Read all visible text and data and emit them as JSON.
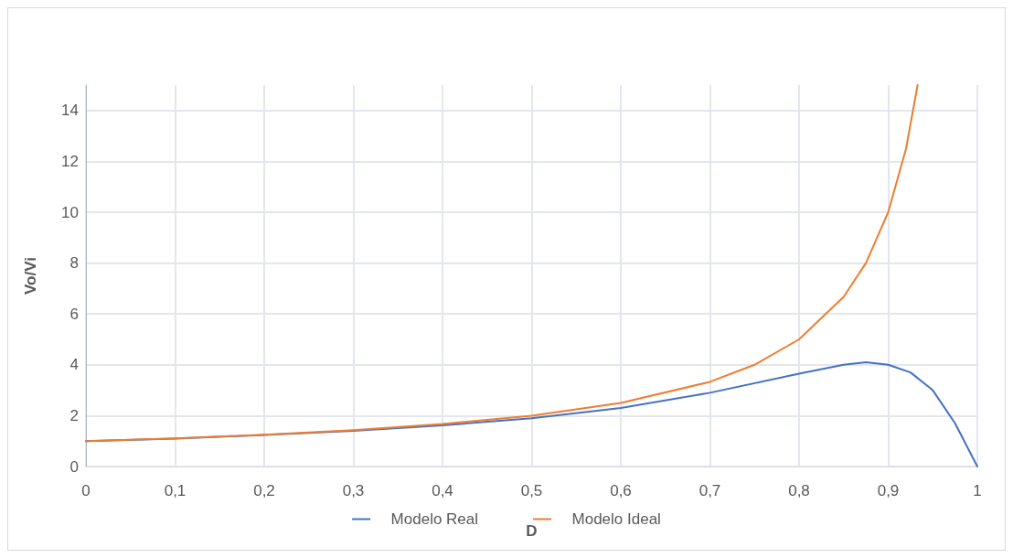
{
  "chart_data": {
    "type": "line",
    "xlabel": "D",
    "ylabel": "Vo/Vi",
    "xlim": [
      0,
      1
    ],
    "xticks": [
      {
        "value": 0,
        "label": "0"
      },
      {
        "value": 0.1,
        "label": "0,1"
      },
      {
        "value": 0.2,
        "label": "0,2"
      },
      {
        "value": 0.3,
        "label": "0,3"
      },
      {
        "value": 0.4,
        "label": "0,4"
      },
      {
        "value": 0.5,
        "label": "0,5"
      },
      {
        "value": 0.6,
        "label": "0,6"
      },
      {
        "value": 0.7,
        "label": "0,7"
      },
      {
        "value": 0.8,
        "label": "0,8"
      },
      {
        "value": 0.9,
        "label": "0,9"
      },
      {
        "value": 1,
        "label": "1"
      }
    ],
    "ylim": [
      0,
      15
    ],
    "yticks": [
      0,
      2,
      4,
      6,
      8,
      10,
      12,
      14
    ],
    "grid": true,
    "legend": "bottom",
    "marker": "none",
    "line_style": "solid",
    "series": [
      {
        "name": "Modelo Real",
        "color": "#4472c4",
        "x": [
          0,
          0.1,
          0.2,
          0.3,
          0.4,
          0.5,
          0.6,
          0.7,
          0.8,
          0.85,
          0.875,
          0.9,
          0.925,
          0.95,
          0.975,
          1
        ],
        "values": [
          1,
          1.1,
          1.24,
          1.4,
          1.62,
          1.9,
          2.3,
          2.9,
          3.65,
          4.0,
          4.1,
          4.0,
          3.7,
          3.0,
          1.7,
          0
        ]
      },
      {
        "name": "Modelo Ideal",
        "color": "#ed7d31",
        "x": [
          0,
          0.1,
          0.2,
          0.3,
          0.4,
          0.5,
          0.6,
          0.7,
          0.75,
          0.8,
          0.85,
          0.875,
          0.9,
          0.92,
          0.933
        ],
        "values": [
          1,
          1.11,
          1.25,
          1.43,
          1.67,
          2,
          2.5,
          3.33,
          4,
          5,
          6.67,
          8,
          10,
          12.5,
          15
        ]
      }
    ]
  }
}
